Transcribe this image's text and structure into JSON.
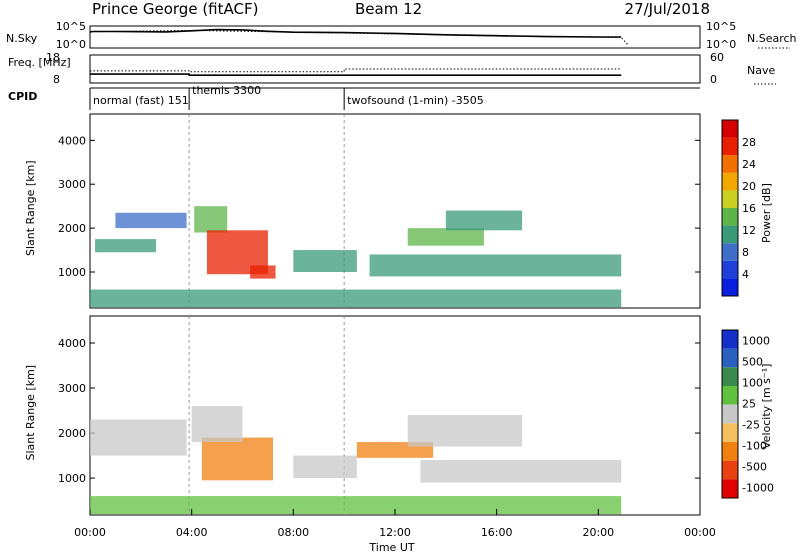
{
  "header": {
    "site": "Prince George (fitACF)",
    "beam": "Beam 12",
    "date": "27/Jul/2018"
  },
  "chart_data": [
    {
      "type": "line",
      "name_panel": "noise",
      "ylabel": "N.Sky",
      "ylabel_right": "N.Search",
      "y_ticks_left": [
        "10^5",
        "10^0"
      ],
      "y_ticks_right": [
        "10^5",
        "10^0"
      ],
      "series": [
        {
          "name": "N.Sky",
          "style": "solid",
          "x": [
            0.0,
            0.1,
            1,
            2,
            3,
            4,
            5,
            6,
            7,
            8,
            10,
            12,
            14,
            16,
            18,
            20,
            20.9
          ],
          "y": [
            0.72,
            0.75,
            0.75,
            0.74,
            0.73,
            0.78,
            0.84,
            0.82,
            0.76,
            0.72,
            0.7,
            0.66,
            0.6,
            0.56,
            0.52,
            0.5,
            0.5
          ]
        },
        {
          "name": "N.Search",
          "style": "dotted",
          "x": [
            0.0,
            4,
            8,
            12,
            16,
            20.9,
            21.2
          ],
          "y": [
            0.74,
            0.8,
            0.72,
            0.64,
            0.54,
            0.48,
            0.1
          ]
        }
      ]
    },
    {
      "type": "line",
      "name_panel": "frequency",
      "ylabel": "Freq. [MHz]",
      "ylabel_right": "Nave",
      "y_ticks_left": [
        "18",
        "8"
      ],
      "y_ticks_right": [
        "60",
        "0"
      ],
      "series": [
        {
          "name": "Freq.",
          "style": "solid",
          "x": [
            0.0,
            3.9,
            3.9,
            10.0,
            10.0,
            20.9
          ],
          "y": [
            11.2,
            11.2,
            10.8,
            10.8,
            10.8,
            10.8
          ]
        },
        {
          "name": "Nave",
          "style": "dotted",
          "x": [
            0.0,
            3.9,
            3.9,
            10.0,
            10.0,
            20.9
          ],
          "y": [
            26,
            26,
            24,
            24,
            30,
            30
          ]
        }
      ]
    },
    {
      "type": "table",
      "name_panel": "cpid",
      "ylabel": "CPID",
      "segments": [
        {
          "label": "normal (fast) 151",
          "start": 0.0
        },
        {
          "label": "themis 3300",
          "start": 3.9
        },
        {
          "label": "twofsound (1-min) -3505",
          "start": 10.0
        }
      ]
    },
    {
      "type": "heatmap",
      "name_panel": "power",
      "ylabel": "Slant Range [km]",
      "ylim": [
        180,
        4600
      ],
      "y_ticks": [
        1000,
        2000,
        3000,
        4000
      ],
      "colorbar_label": "Power [dB]",
      "colorbar_ticks": [
        4,
        8,
        12,
        16,
        20,
        24,
        28
      ],
      "scale": [
        "#0a1ee0",
        "#1f40d8",
        "#3d6ec8",
        "#3a9a78",
        "#5db54a",
        "#c8d020",
        "#f2a800",
        "#f07000",
        "#e82000",
        "#d40000"
      ],
      "scale_range": [
        0,
        30
      ],
      "blobs": [
        {
          "x": [
            1.0,
            3.8
          ],
          "y": [
            2000,
            2350
          ],
          "level": 8
        },
        {
          "x": [
            0.2,
            2.6
          ],
          "y": [
            1450,
            1750
          ],
          "level": 9
        },
        {
          "x": [
            4.1,
            5.4
          ],
          "y": [
            1900,
            2500
          ],
          "level": 12
        },
        {
          "x": [
            4.6,
            7.0
          ],
          "y": [
            950,
            1950
          ],
          "level": 26
        },
        {
          "x": [
            6.3,
            7.3
          ],
          "y": [
            850,
            1150
          ],
          "level": 24
        },
        {
          "x": [
            8.0,
            10.5
          ],
          "y": [
            1000,
            1500
          ],
          "level": 10
        },
        {
          "x": [
            11.0,
            20.9
          ],
          "y": [
            900,
            1400
          ],
          "level": 9
        },
        {
          "x": [
            12.5,
            15.5
          ],
          "y": [
            1600,
            2000
          ],
          "level": 12
        },
        {
          "x": [
            14.0,
            17.0
          ],
          "y": [
            1950,
            2400
          ],
          "level": 11
        },
        {
          "x": [
            0.0,
            20.9
          ],
          "y": [
            200,
            600
          ],
          "level": 10
        }
      ]
    },
    {
      "type": "heatmap",
      "name_panel": "velocity",
      "xlabel": "Time UT",
      "ylabel": "Slant Range [km]",
      "ylim": [
        180,
        4600
      ],
      "y_ticks": [
        1000,
        2000,
        3000,
        4000
      ],
      "xlim": [
        0,
        24
      ],
      "x_ticks": [
        "00:00",
        "04:00",
        "08:00",
        "12:00",
        "16:00",
        "20:00",
        "00:00"
      ],
      "colorbar_label": "Velocity [m s⁻¹]",
      "colorbar_ticks": [
        "1000",
        "500",
        "100",
        "25",
        "-25",
        "-100",
        "-500",
        "-1000"
      ],
      "scale": [
        "#1430c8",
        "#2a60c0",
        "#3a8a50",
        "#60c040",
        "#c8c8c8",
        "#f5c060",
        "#f08010",
        "#e84010",
        "#e00000"
      ],
      "blobs": [
        {
          "x": [
            0.0,
            3.8
          ],
          "y": [
            1500,
            2300
          ],
          "value": 0
        },
        {
          "x": [
            4.4,
            7.2
          ],
          "y": [
            950,
            1900
          ],
          "value": -300
        },
        {
          "x": [
            4.0,
            6.0
          ],
          "y": [
            1800,
            2600
          ],
          "value": 0
        },
        {
          "x": [
            8.0,
            10.5
          ],
          "y": [
            1000,
            1500
          ],
          "value": 0
        },
        {
          "x": [
            10.5,
            13.5
          ],
          "y": [
            1450,
            1800
          ],
          "value": -150
        },
        {
          "x": [
            13.0,
            20.9
          ],
          "y": [
            900,
            1400
          ],
          "value": 0
        },
        {
          "x": [
            12.5,
            17.0
          ],
          "y": [
            1700,
            2400
          ],
          "value": 0
        },
        {
          "x": [
            0.0,
            20.9
          ],
          "y": [
            200,
            600
          ],
          "value": 60
        }
      ]
    }
  ]
}
